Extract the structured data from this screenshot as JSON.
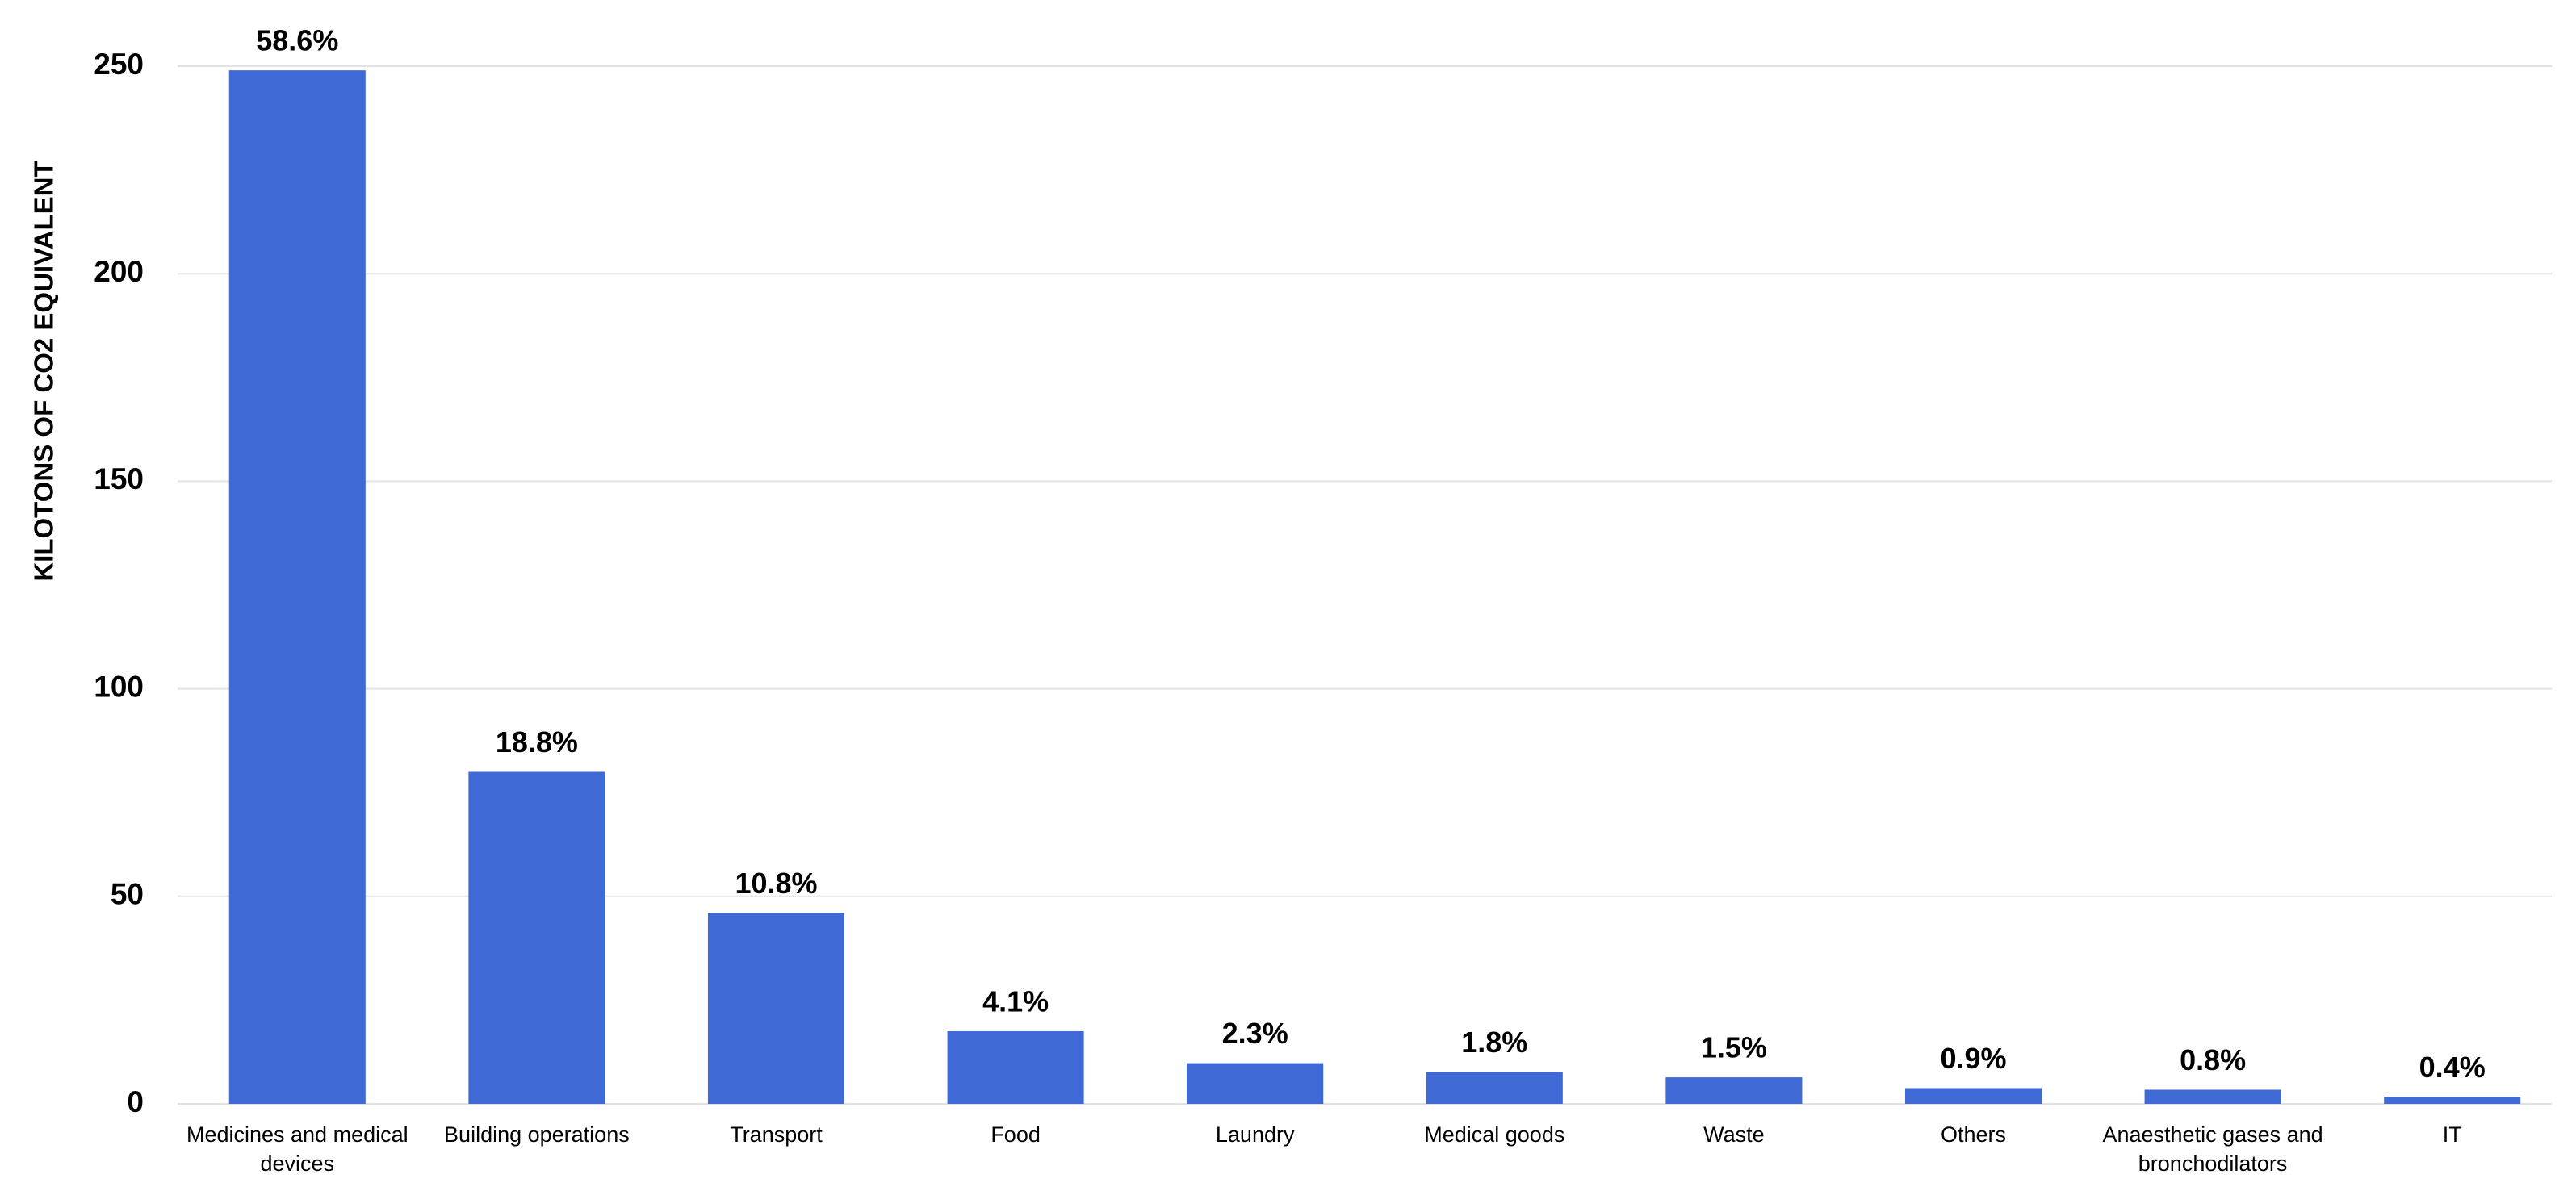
{
  "chart_data": {
    "type": "bar",
    "y_label": "KILOTONS OF CO2 EQUIVALENT",
    "categories": [
      "Medicines and medical devices",
      "Building operations",
      "Transport",
      "Food",
      "Laundry",
      "Medical goods",
      "Waste",
      "Others",
      "Anaesthetic gases and bronchodilators",
      "IT"
    ],
    "values": [
      249,
      80,
      46,
      17.5,
      9.8,
      7.7,
      6.4,
      3.8,
      3.4,
      1.7
    ],
    "share_labels": [
      "58.6%",
      "18.8%",
      "10.8%",
      "4.1%",
      "2.3%",
      "1.8%",
      "1.5%",
      "0.9%",
      "0.8%",
      "0.4%"
    ],
    "color": "#3f6ad6",
    "ylim": [
      0,
      250
    ],
    "yticks": [
      0,
      50,
      100,
      150,
      200,
      250
    ],
    "grid": true
  }
}
